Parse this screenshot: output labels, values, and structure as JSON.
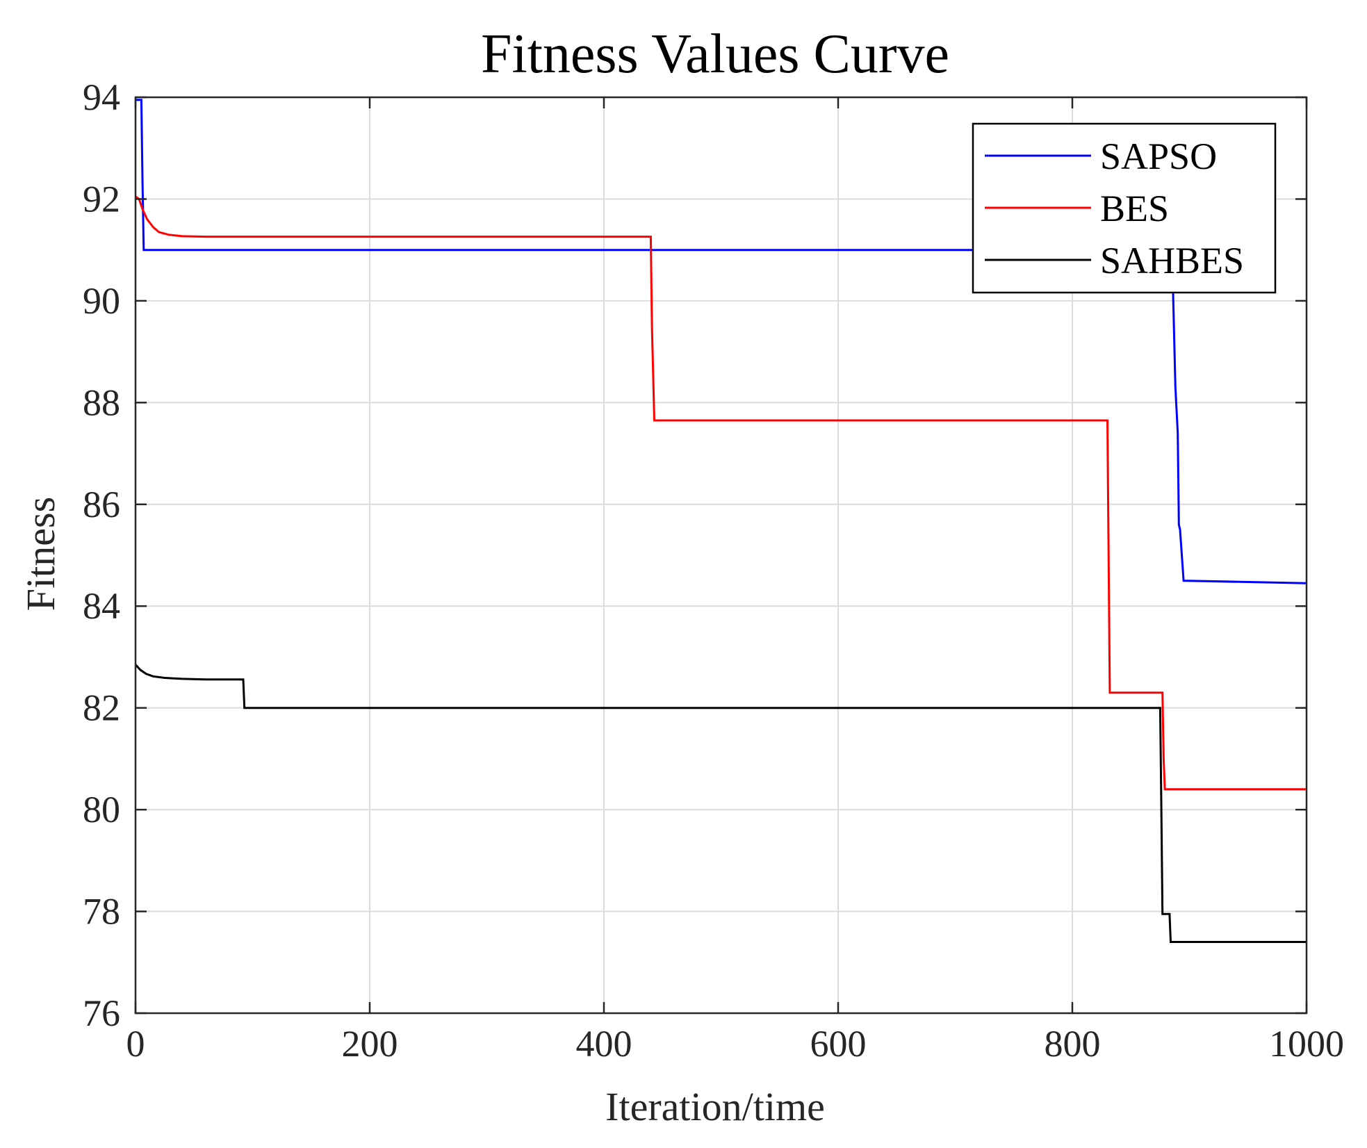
{
  "chart_data": {
    "type": "line",
    "title": "Fitness Values Curve",
    "xlabel": "Iteration/time",
    "ylabel": "Fitness",
    "xlim": [
      0,
      1000
    ],
    "ylim": [
      76,
      94
    ],
    "xticks": [
      0,
      200,
      400,
      600,
      800,
      1000
    ],
    "yticks": [
      76,
      78,
      80,
      82,
      84,
      86,
      88,
      90,
      92,
      94
    ],
    "grid": true,
    "legend_position": "top-right",
    "series": [
      {
        "name": "SAPSO",
        "color": "#0000ff",
        "points": [
          [
            0,
            93.95
          ],
          [
            5,
            93.95
          ],
          [
            6,
            92.3
          ],
          [
            7,
            91.0
          ],
          [
            885,
            91.0
          ],
          [
            886,
            90.2
          ],
          [
            888,
            88.3
          ],
          [
            890,
            87.4
          ],
          [
            891,
            85.6
          ],
          [
            892,
            85.5
          ],
          [
            895,
            84.5
          ],
          [
            1000,
            84.45
          ]
        ]
      },
      {
        "name": "BES",
        "color": "#ff0000",
        "points": [
          [
            0,
            92.05
          ],
          [
            3,
            92.0
          ],
          [
            6,
            91.8
          ],
          [
            10,
            91.6
          ],
          [
            15,
            91.45
          ],
          [
            20,
            91.35
          ],
          [
            28,
            91.3
          ],
          [
            40,
            91.27
          ],
          [
            60,
            91.26
          ],
          [
            440,
            91.26
          ],
          [
            441,
            89.5
          ],
          [
            443,
            87.65
          ],
          [
            830,
            87.65
          ],
          [
            831,
            85.0
          ],
          [
            832,
            82.3
          ],
          [
            877,
            82.3
          ],
          [
            878,
            81.0
          ],
          [
            879,
            80.4
          ],
          [
            1000,
            80.4
          ]
        ]
      },
      {
        "name": "SAHBES",
        "color": "#000000",
        "points": [
          [
            0,
            82.85
          ],
          [
            4,
            82.75
          ],
          [
            9,
            82.67
          ],
          [
            15,
            82.62
          ],
          [
            25,
            82.59
          ],
          [
            40,
            82.57
          ],
          [
            60,
            82.56
          ],
          [
            92,
            82.56
          ],
          [
            93,
            82.0
          ],
          [
            875,
            82.0
          ],
          [
            876,
            80.0
          ],
          [
            877,
            77.95
          ],
          [
            883,
            77.95
          ],
          [
            884,
            77.4
          ],
          [
            1000,
            77.4
          ]
        ]
      }
    ]
  }
}
